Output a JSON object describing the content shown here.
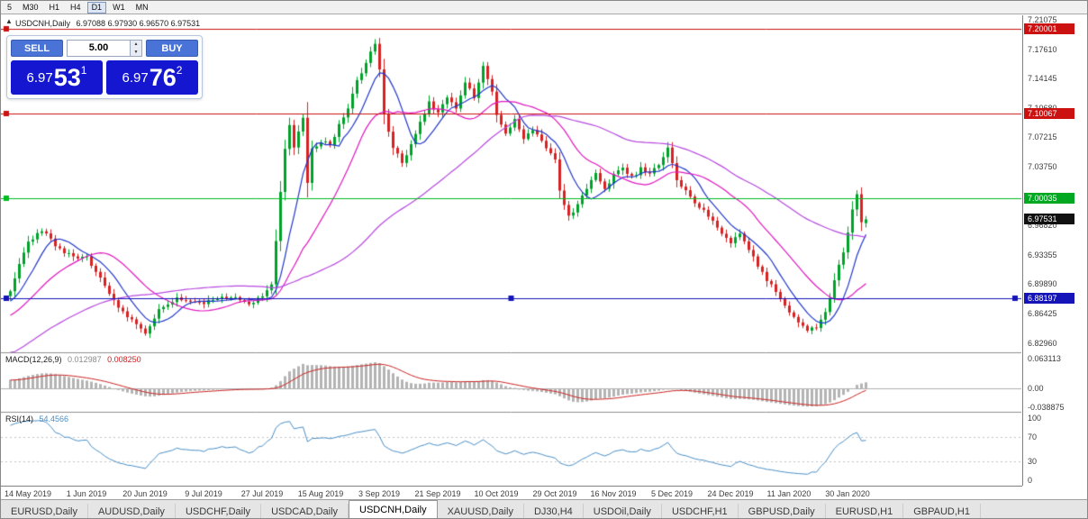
{
  "toolbar": {
    "timeframes": [
      {
        "label": "5",
        "active": false
      },
      {
        "label": "M30",
        "active": false
      },
      {
        "label": "H1",
        "active": false
      },
      {
        "label": "H4",
        "active": false
      },
      {
        "label": "D1",
        "active": true
      },
      {
        "label": "W1",
        "active": false
      },
      {
        "label": "MN",
        "active": false
      }
    ]
  },
  "chart": {
    "symbol_title": "USDCNH,Daily",
    "ohlc_text": "6.97088 6.97930 6.96570 6.97531",
    "open": "6.97088",
    "high": "6.97930",
    "low": "6.96570",
    "close": "6.97531"
  },
  "one_click": {
    "sell_label": "SELL",
    "buy_label": "BUY",
    "volume": "5.00",
    "sell_price_prefix": "6.97",
    "sell_price_big": "53",
    "sell_price_sup": "1",
    "buy_price_prefix": "6.97",
    "buy_price_big": "76",
    "buy_price_sup": "2"
  },
  "price_scale": {
    "ticks": [
      7.21075,
      7.1761,
      7.14145,
      7.1068,
      7.07215,
      7.0375,
      7.00285,
      6.9682,
      6.93355,
      6.8989,
      6.86425,
      6.8296
    ],
    "tags": [
      {
        "text": "7.20001",
        "bg": "#cc1111",
        "price": 7.20001
      },
      {
        "text": "7.10067",
        "bg": "#cc1111",
        "price": 7.10067
      },
      {
        "text": "7.00035",
        "bg": "#00a822",
        "price": 7.00035
      },
      {
        "text": "6.97531",
        "bg": "#111111",
        "price": 6.97531
      },
      {
        "text": "6.88197",
        "bg": "#1414b8",
        "price": 6.88197
      }
    ]
  },
  "indicators": {
    "macd": {
      "label": "MACD(12,26,9)",
      "value_main": "0.012987",
      "value_signal": "0.008250",
      "scale": [
        "0.063113",
        "0.00",
        "-0.038875"
      ],
      "scale_values": [
        0.063113,
        0,
        -0.038875
      ]
    },
    "rsi": {
      "label": "RSI(14)",
      "value": "54.4566",
      "scale": [
        100,
        70,
        30,
        0
      ]
    }
  },
  "x_axis": {
    "labels": [
      "14 May 2019",
      "1 Jun 2019",
      "20 Jun 2019",
      "9 Jul 2019",
      "27 Jul 2019",
      "15 Aug 2019",
      "3 Sep 2019",
      "21 Sep 2019",
      "10 Oct 2019",
      "29 Oct 2019",
      "16 Nov 2019",
      "5 Dec 2019",
      "24 Dec 2019",
      "11 Jan 2020",
      "30 Jan 2020"
    ]
  },
  "tabs": {
    "items": [
      "EURUSD,Daily",
      "AUDUSD,Daily",
      "USDCHF,Daily",
      "USDCAD,Daily",
      "USDCNH,Daily",
      "XAUUSD,Daily",
      "DJ30,H4",
      "USDOil,Daily",
      "USDCHF,H1",
      "GBPUSD,Daily",
      "EURUSD,H1",
      "GBPAUD,H1"
    ],
    "active_index": 4
  },
  "chart_data": {
    "type": "candlestick",
    "symbol": "USDCNH",
    "timeframe": "Daily",
    "bars_visible": 191,
    "bar_spacing_px": 5,
    "date_tick_first_bar": 4,
    "date_tick_step": 13,
    "price_range": [
      6.8185,
      7.216
    ],
    "last_ohlc": {
      "open": 6.97088,
      "high": 6.9793,
      "low": 6.9657,
      "close": 6.97531
    },
    "prehistory": {
      "bars": 60,
      "from": 6.73,
      "to": 6.885
    },
    "close_waypoints": [
      [
        0,
        6.893
      ],
      [
        4,
        6.948
      ],
      [
        7,
        6.963
      ],
      [
        11,
        6.94
      ],
      [
        15,
        6.928
      ],
      [
        17,
        6.932
      ],
      [
        20,
        6.905
      ],
      [
        24,
        6.872
      ],
      [
        28,
        6.852
      ],
      [
        30,
        6.843
      ],
      [
        33,
        6.868
      ],
      [
        37,
        6.881
      ],
      [
        43,
        6.877
      ],
      [
        48,
        6.884
      ],
      [
        53,
        6.877
      ],
      [
        56,
        6.884
      ],
      [
        58,
        6.898
      ],
      [
        59,
        6.948
      ],
      [
        60,
        7.008
      ],
      [
        61,
        7.058
      ],
      [
        62,
        7.088
      ],
      [
        63,
        7.062
      ],
      [
        65,
        7.095
      ],
      [
        66,
        7.018
      ],
      [
        67,
        7.058
      ],
      [
        69,
        7.068
      ],
      [
        71,
        7.062
      ],
      [
        73,
        7.088
      ],
      [
        75,
        7.108
      ],
      [
        77,
        7.138
      ],
      [
        79,
        7.162
      ],
      [
        81,
        7.183
      ],
      [
        82,
        7.15
      ],
      [
        83,
        7.098
      ],
      [
        85,
        7.062
      ],
      [
        87,
        7.04
      ],
      [
        89,
        7.065
      ],
      [
        91,
        7.09
      ],
      [
        93,
        7.112
      ],
      [
        95,
        7.102
      ],
      [
        97,
        7.12
      ],
      [
        99,
        7.108
      ],
      [
        101,
        7.135
      ],
      [
        103,
        7.12
      ],
      [
        105,
        7.155
      ],
      [
        107,
        7.128
      ],
      [
        108,
        7.098
      ],
      [
        110,
        7.078
      ],
      [
        112,
        7.092
      ],
      [
        114,
        7.072
      ],
      [
        116,
        7.082
      ],
      [
        118,
        7.066
      ],
      [
        121,
        7.048
      ],
      [
        122,
        7.008
      ],
      [
        124,
        6.978
      ],
      [
        126,
        6.992
      ],
      [
        128,
        7.012
      ],
      [
        130,
        7.028
      ],
      [
        132,
        7.012
      ],
      [
        134,
        7.028
      ],
      [
        136,
        7.038
      ],
      [
        138,
        7.025
      ],
      [
        140,
        7.035
      ],
      [
        142,
        7.028
      ],
      [
        144,
        7.04
      ],
      [
        146,
        7.062
      ],
      [
        148,
        7.022
      ],
      [
        150,
        7.008
      ],
      [
        152,
        6.996
      ],
      [
        154,
        6.985
      ],
      [
        156,
        6.972
      ],
      [
        158,
        6.96
      ],
      [
        160,
        6.948
      ],
      [
        162,
        6.958
      ],
      [
        164,
        6.938
      ],
      [
        166,
        6.922
      ],
      [
        168,
        6.905
      ],
      [
        170,
        6.888
      ],
      [
        172,
        6.872
      ],
      [
        173,
        6.866
      ],
      [
        175,
        6.852
      ],
      [
        177,
        6.843
      ],
      [
        179,
        6.848
      ],
      [
        181,
        6.868
      ],
      [
        183,
        6.902
      ],
      [
        185,
        6.938
      ],
      [
        186,
        6.962
      ],
      [
        187,
        6.988
      ],
      [
        188,
        7.005
      ],
      [
        189,
        6.972
      ],
      [
        190,
        6.97531
      ]
    ],
    "candle_up_color": "#00a32a",
    "candle_down_color": "#d62222",
    "moving_averages": [
      {
        "type": "sma",
        "period": 8,
        "color": "#2238cc"
      },
      {
        "type": "sma",
        "period": 20,
        "color": "#e018c0"
      },
      {
        "type": "sma",
        "period": 55,
        "color": "#b84ae0"
      }
    ],
    "levels": [
      {
        "price": 7.20001,
        "color": "#cc1111",
        "selected": false
      },
      {
        "price": 7.10067,
        "color": "#cc1111",
        "selected": false
      },
      {
        "price": 7.00035,
        "color": "#00bb22",
        "selected": false
      },
      {
        "price": 6.88197,
        "color": "#1414b8",
        "selected": true
      }
    ],
    "macd": {
      "fast": 12,
      "slow": 26,
      "signal": 9,
      "range": [
        -0.0485,
        0.0745
      ],
      "hist_color": "#b4b4b4",
      "signal_color": "#cc2222",
      "current_main": 0.012987,
      "current_signal": 0.00825
    },
    "rsi": {
      "period": 14,
      "range": [
        -8,
        108
      ],
      "levels": [
        70,
        30
      ],
      "color": "#4a90c8",
      "current": 54.4566
    }
  }
}
